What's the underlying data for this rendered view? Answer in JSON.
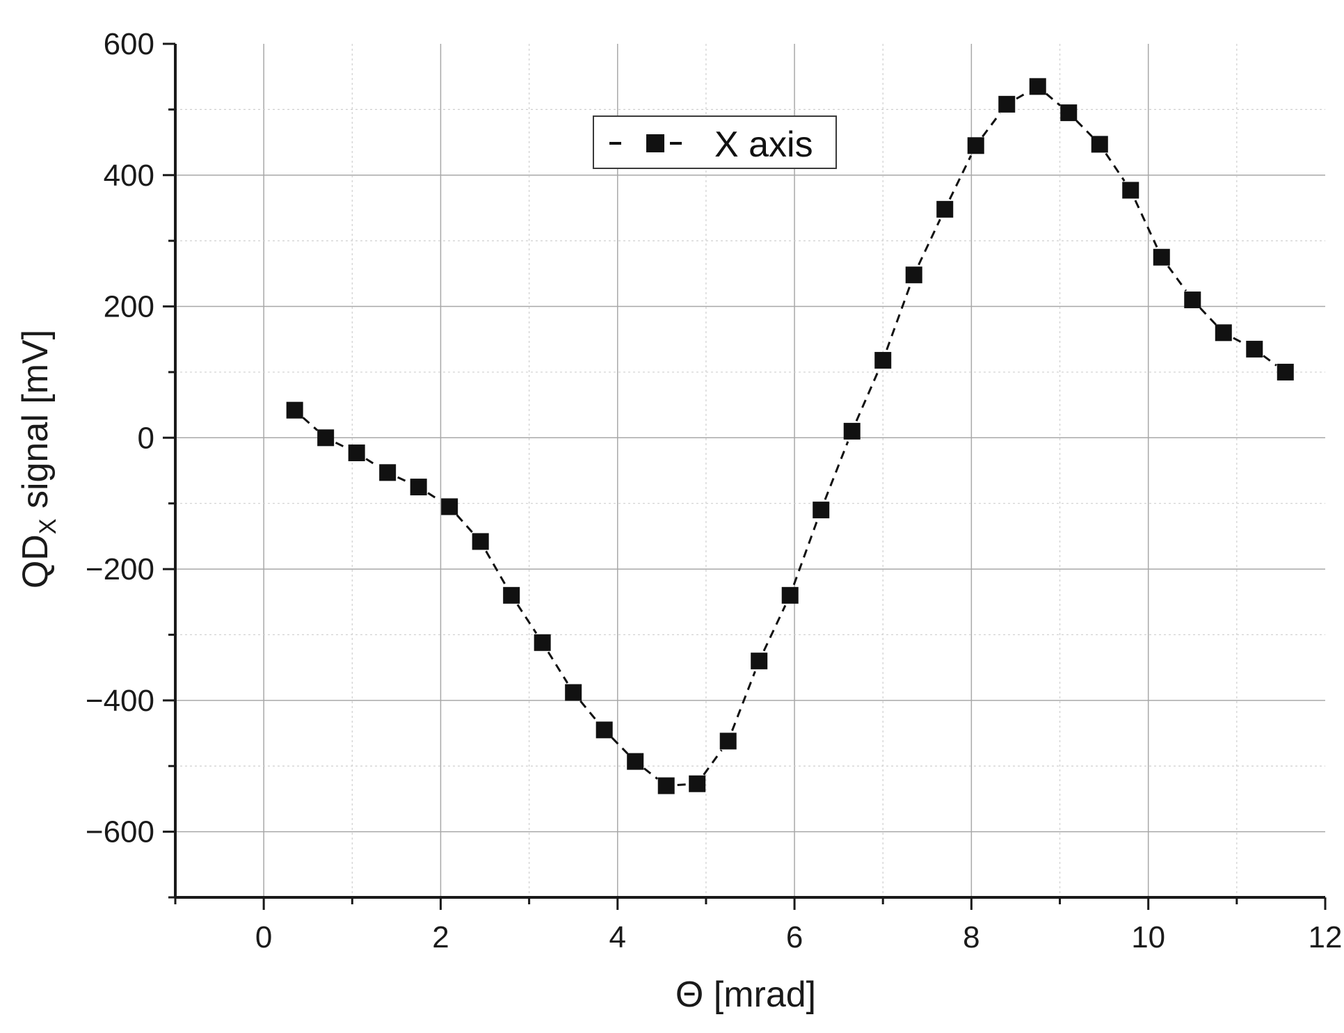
{
  "chart_data": {
    "type": "line",
    "xlabel": "Θ [mrad]",
    "ylabel": {
      "main": "QD",
      "subscript": "X",
      "suffix": " signal [mV]"
    },
    "xlim": [
      -1,
      12
    ],
    "ylim": [
      -700,
      600
    ],
    "x_ticks": [
      0,
      2,
      4,
      6,
      8,
      10,
      12
    ],
    "x_minor_ticks": [
      -1,
      1,
      3,
      5,
      7,
      9,
      11
    ],
    "y_ticks": [
      -600,
      -400,
      -200,
      0,
      200,
      400,
      600
    ],
    "y_minor_ticks": [
      -700,
      -500,
      -300,
      -100,
      100,
      300,
      500
    ],
    "x_tick_labels": [
      "0",
      "2",
      "4",
      "6",
      "8",
      "10",
      "12"
    ],
    "y_tick_labels": [
      "−600",
      "−400",
      "−200",
      "0",
      "200",
      "400",
      "600"
    ],
    "grid": true,
    "legend_position": "top-center",
    "series": [
      {
        "name": "X axis",
        "marker": "square",
        "line_style": "dashed",
        "color": "#111111",
        "x": [
          0.35,
          0.7,
          1.05,
          1.4,
          1.75,
          2.1,
          2.45,
          2.8,
          3.15,
          3.5,
          3.85,
          4.2,
          4.55,
          4.9,
          5.25,
          5.6,
          5.95,
          6.3,
          6.65,
          7.0,
          7.35,
          7.7,
          8.05,
          8.4,
          8.75,
          9.1,
          9.45,
          9.8,
          10.15,
          10.5,
          10.85,
          11.2,
          11.55
        ],
        "y": [
          42,
          0,
          -23,
          -53,
          -75,
          -105,
          -158,
          -240,
          -312,
          -388,
          -445,
          -493,
          -530,
          -527,
          -462,
          -340,
          -240,
          -110,
          10,
          118,
          248,
          348,
          445,
          508,
          535,
          495,
          447,
          377,
          275,
          210,
          160,
          135,
          100
        ]
      }
    ]
  }
}
